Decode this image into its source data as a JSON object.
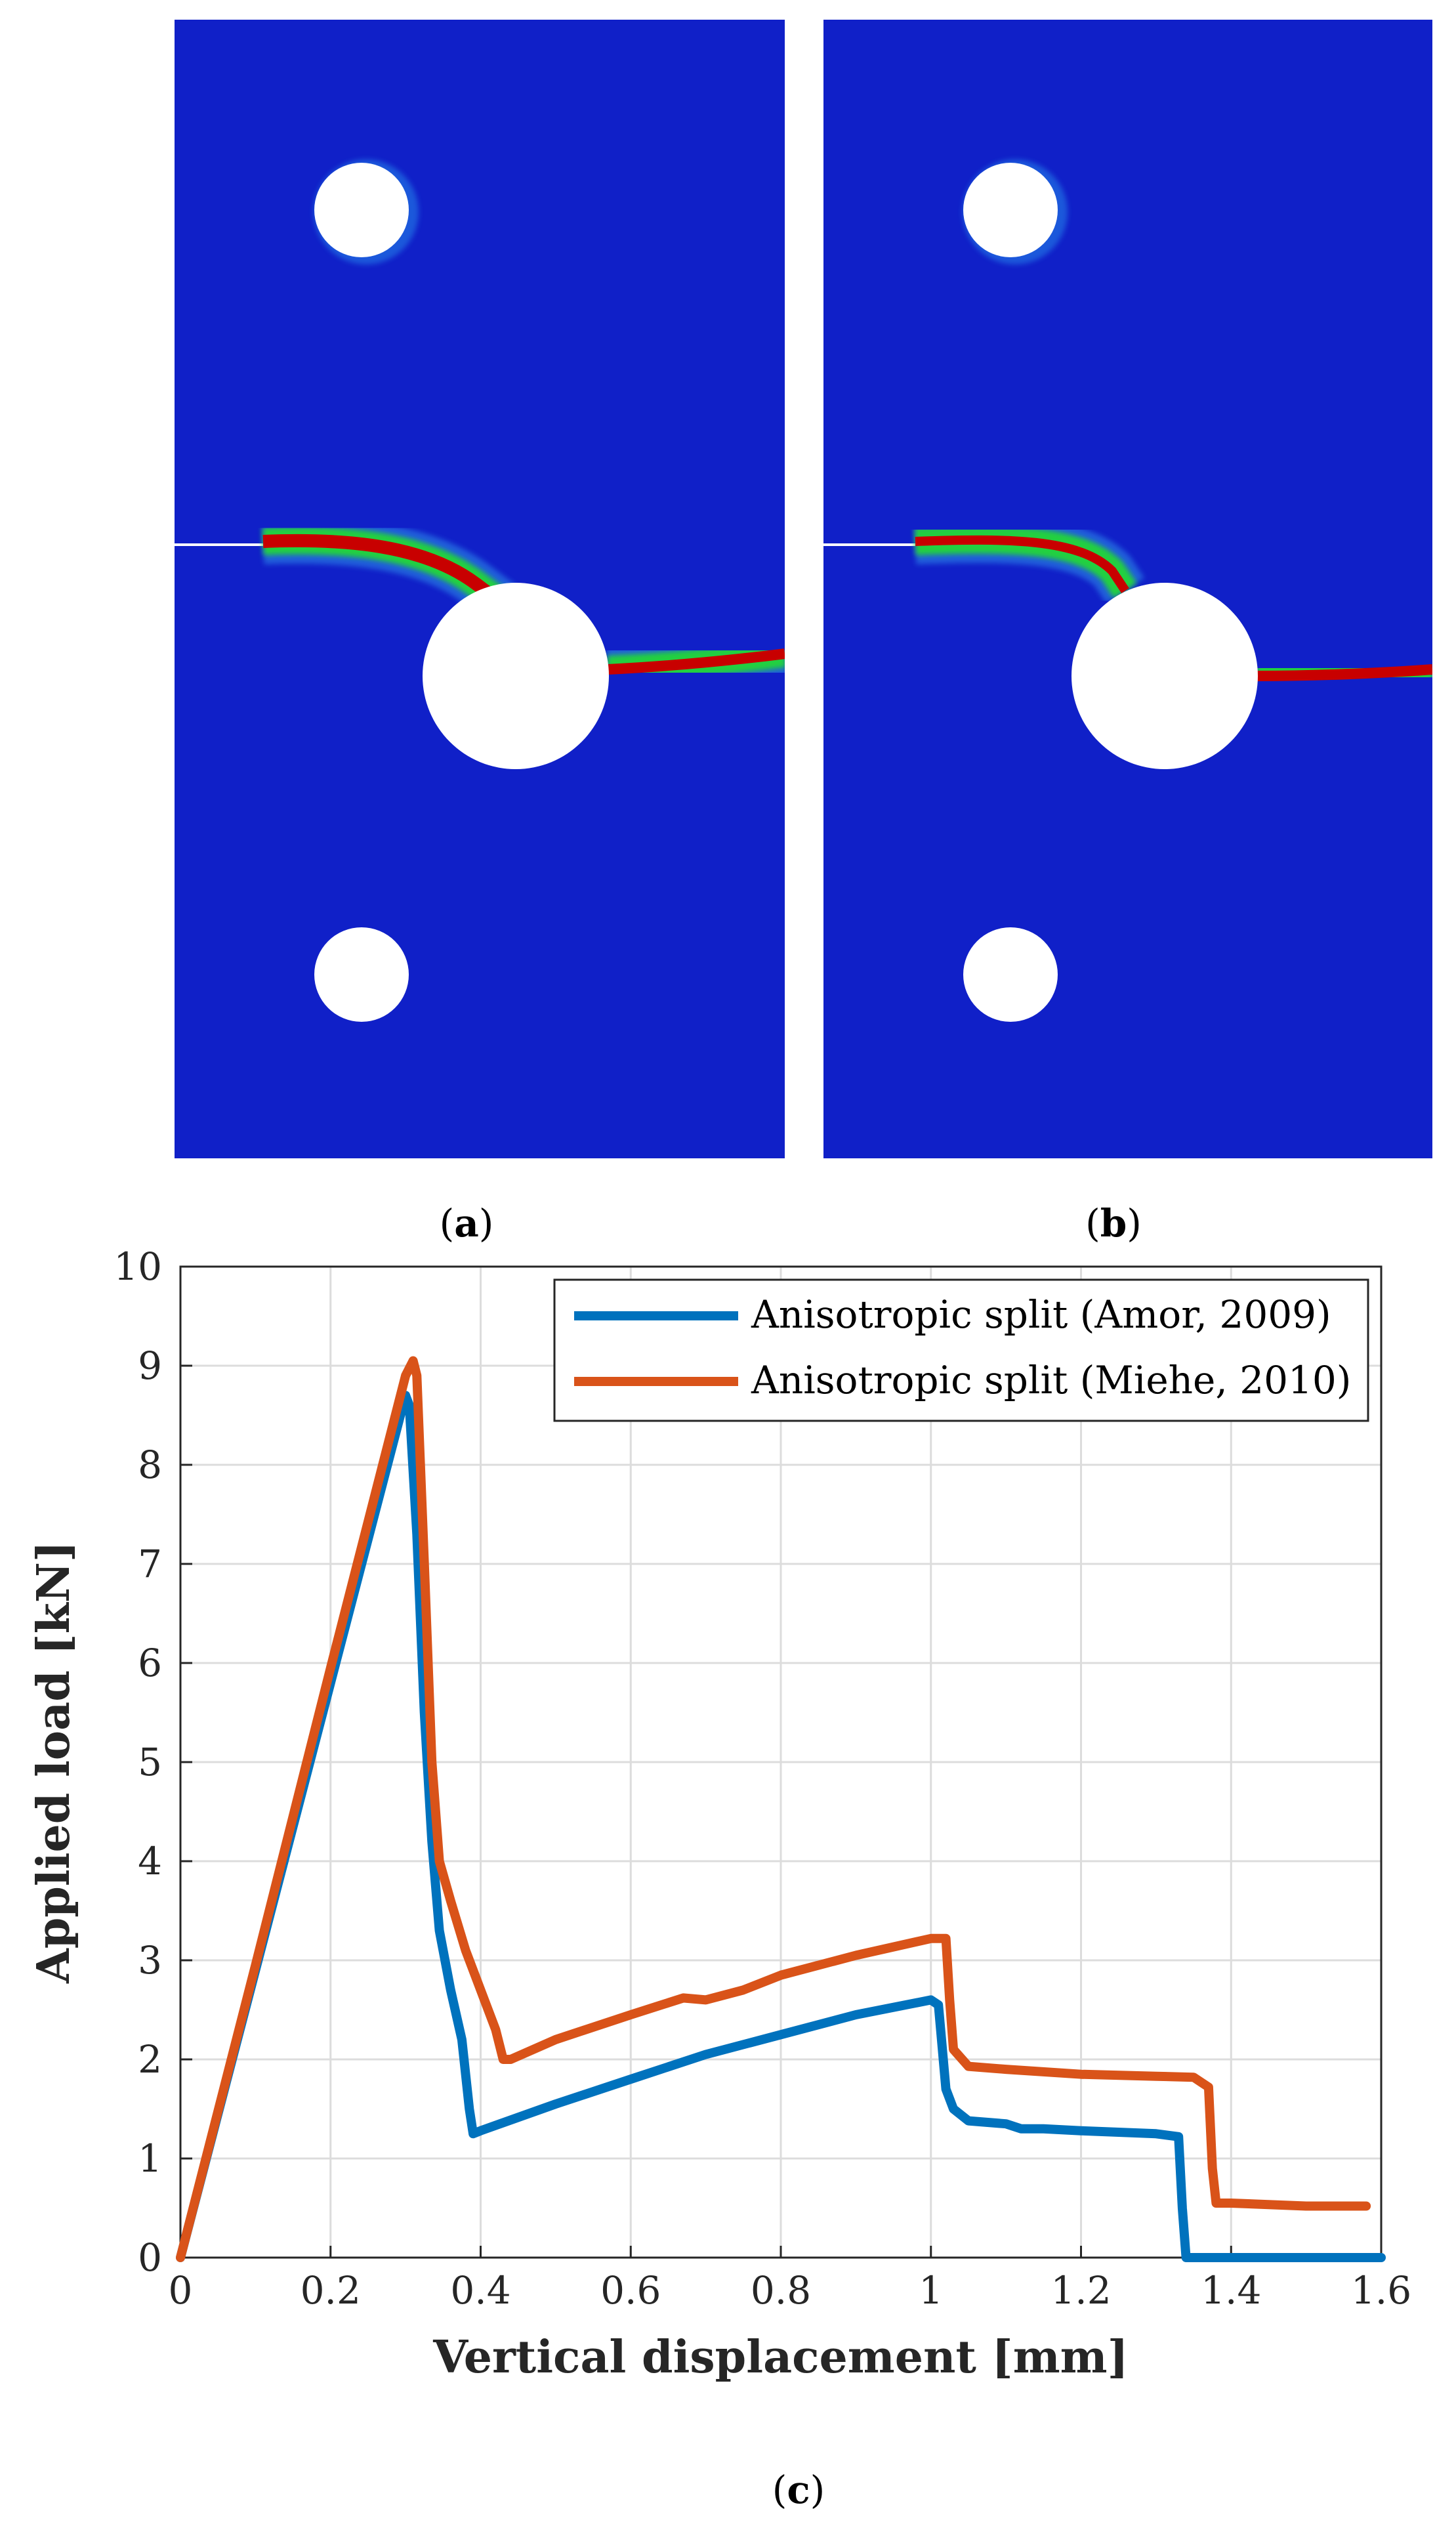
{
  "figure": {
    "panels": [
      {
        "id": "a",
        "label": "a",
        "description_hidden": true
      },
      {
        "id": "b",
        "label": "b",
        "description_hidden": true
      }
    ],
    "captions": {
      "a_open": "(",
      "a": "a",
      "a_close": ")",
      "b_open": "(",
      "b": "b",
      "b_close": ")",
      "c_open": "(",
      "c": "c",
      "c_close": ")"
    },
    "colors": {
      "field_blue": "#1020c8",
      "crack_red": "#c80000",
      "crack_green": "#20d040",
      "series_blue": "#0072BD",
      "series_orange": "#D95319"
    }
  },
  "chart_data": {
    "type": "line",
    "xlabel": "Vertical displacement [mm]",
    "ylabel": "Applied load [kN]",
    "xlim": [
      0,
      1.6
    ],
    "ylim": [
      0,
      10
    ],
    "xticks": [
      "0",
      "0.2",
      "0.4",
      "0.6",
      "0.8",
      "1",
      "1.2",
      "1.4",
      "1.6"
    ],
    "yticks": [
      "0",
      "1",
      "2",
      "3",
      "4",
      "5",
      "6",
      "7",
      "8",
      "9",
      "10"
    ],
    "grid": true,
    "legend_position": "top-right",
    "series": [
      {
        "name": "Anisotropic split (Amor, 2009)",
        "color": "#0072BD",
        "x": [
          0,
          0.1,
          0.2,
          0.3,
          0.305,
          0.315,
          0.325,
          0.335,
          0.345,
          0.36,
          0.375,
          0.385,
          0.39,
          0.4,
          0.5,
          0.6,
          0.7,
          0.8,
          0.9,
          1.0,
          1.01,
          1.02,
          1.03,
          1.05,
          1.1,
          1.12,
          1.15,
          1.2,
          1.3,
          1.33,
          1.335,
          1.34,
          1.4,
          1.6
        ],
        "y": [
          0,
          2.9,
          5.8,
          8.7,
          8.6,
          7.3,
          5.5,
          4.2,
          3.3,
          2.7,
          2.2,
          1.5,
          1.25,
          1.28,
          1.55,
          1.8,
          2.05,
          2.25,
          2.45,
          2.6,
          2.55,
          1.7,
          1.5,
          1.38,
          1.35,
          1.3,
          1.3,
          1.28,
          1.25,
          1.22,
          0.5,
          0.0,
          0.0,
          0.0
        ]
      },
      {
        "name": "Anisotropic split (Miehe, 2010)",
        "color": "#D95319",
        "x": [
          0,
          0.1,
          0.2,
          0.3,
          0.31,
          0.315,
          0.325,
          0.335,
          0.345,
          0.36,
          0.38,
          0.4,
          0.42,
          0.43,
          0.44,
          0.5,
          0.6,
          0.67,
          0.7,
          0.75,
          0.8,
          0.9,
          1.0,
          1.02,
          1.025,
          1.03,
          1.05,
          1.1,
          1.2,
          1.3,
          1.35,
          1.37,
          1.375,
          1.38,
          1.4,
          1.5,
          1.58
        ],
        "y": [
          0,
          2.95,
          5.95,
          8.9,
          9.05,
          8.9,
          7.0,
          5.0,
          4.0,
          3.6,
          3.1,
          2.7,
          2.3,
          2.0,
          2.0,
          2.2,
          2.45,
          2.62,
          2.6,
          2.7,
          2.85,
          3.05,
          3.22,
          3.22,
          2.6,
          2.1,
          1.93,
          1.9,
          1.85,
          1.83,
          1.82,
          1.72,
          0.9,
          0.55,
          0.55,
          0.52,
          0.52
        ]
      }
    ]
  }
}
